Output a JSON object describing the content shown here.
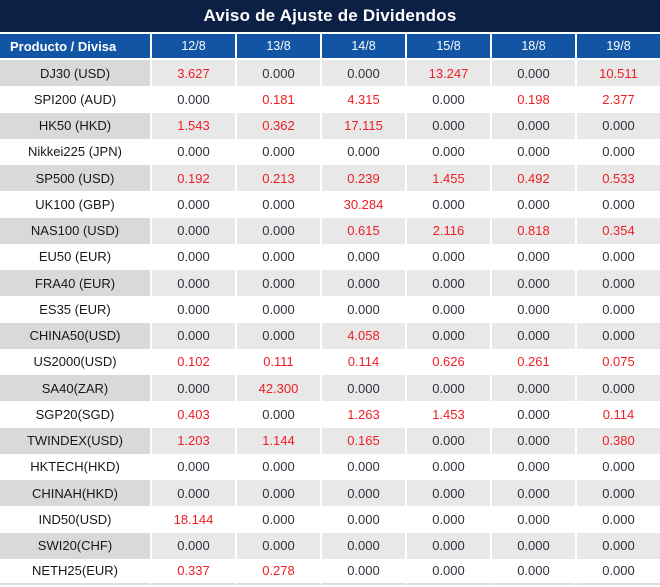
{
  "title": "Aviso de Ajuste de Dividendos",
  "colors": {
    "title_bg": "#0b2044",
    "header_bg": "#1155a4",
    "red": "#ee1e25",
    "zero_text": "#30303c",
    "product_text": "#17171f",
    "stripe_value": "#e9e8e8",
    "stripe_product": "#d9d9d9",
    "bottom_line": "#dcdcdc"
  },
  "table": {
    "columns": [
      "Producto / Divisa",
      "12/8",
      "13/8",
      "14/8",
      "15/8",
      "18/8",
      "19/8"
    ],
    "rows": [
      {
        "product": "DJ30 (USD)",
        "values": [
          "3.627",
          "0.000",
          "0.000",
          "13.247",
          "0.000",
          "10.511"
        ]
      },
      {
        "product": "SPI200 (AUD)",
        "values": [
          "0.000",
          "0.181",
          "4.315",
          "0.000",
          "0.198",
          "2.377"
        ]
      },
      {
        "product": "HK50 (HKD)",
        "values": [
          "1.543",
          "0.362",
          "17.115",
          "0.000",
          "0.000",
          "0.000"
        ]
      },
      {
        "product": "Nikkei225 (JPN)",
        "values": [
          "0.000",
          "0.000",
          "0.000",
          "0.000",
          "0.000",
          "0.000"
        ]
      },
      {
        "product": "SP500 (USD)",
        "values": [
          "0.192",
          "0.213",
          "0.239",
          "1.455",
          "0.492",
          "0.533"
        ]
      },
      {
        "product": "UK100 (GBP)",
        "values": [
          "0.000",
          "0.000",
          "30.284",
          "0.000",
          "0.000",
          "0.000"
        ]
      },
      {
        "product": "NAS100 (USD)",
        "values": [
          "0.000",
          "0.000",
          "0.615",
          "2.116",
          "0.818",
          "0.354"
        ]
      },
      {
        "product": "EU50 (EUR)",
        "values": [
          "0.000",
          "0.000",
          "0.000",
          "0.000",
          "0.000",
          "0.000"
        ]
      },
      {
        "product": "FRA40 (EUR)",
        "values": [
          "0.000",
          "0.000",
          "0.000",
          "0.000",
          "0.000",
          "0.000"
        ]
      },
      {
        "product": "ES35 (EUR)",
        "values": [
          "0.000",
          "0.000",
          "0.000",
          "0.000",
          "0.000",
          "0.000"
        ]
      },
      {
        "product": "CHINA50(USD)",
        "values": [
          "0.000",
          "0.000",
          "4.058",
          "0.000",
          "0.000",
          "0.000"
        ]
      },
      {
        "product": "US2000(USD)",
        "values": [
          "0.102",
          "0.111",
          "0.114",
          "0.626",
          "0.261",
          "0.075"
        ]
      },
      {
        "product": "SA40(ZAR)",
        "values": [
          "0.000",
          "42.300",
          "0.000",
          "0.000",
          "0.000",
          "0.000"
        ]
      },
      {
        "product": "SGP20(SGD)",
        "values": [
          "0.403",
          "0.000",
          "1.263",
          "1.453",
          "0.000",
          "0.114"
        ]
      },
      {
        "product": "TWINDEX(USD)",
        "values": [
          "1.203",
          "1.144",
          "0.165",
          "0.000",
          "0.000",
          "0.380"
        ]
      },
      {
        "product": "HKTECH(HKD)",
        "values": [
          "0.000",
          "0.000",
          "0.000",
          "0.000",
          "0.000",
          "0.000"
        ]
      },
      {
        "product": "CHINAH(HKD)",
        "values": [
          "0.000",
          "0.000",
          "0.000",
          "0.000",
          "0.000",
          "0.000"
        ]
      },
      {
        "product": "IND50(USD)",
        "values": [
          "18.144",
          "0.000",
          "0.000",
          "0.000",
          "0.000",
          "0.000"
        ]
      },
      {
        "product": "SWI20(CHF)",
        "values": [
          "0.000",
          "0.000",
          "0.000",
          "0.000",
          "0.000",
          "0.000"
        ]
      },
      {
        "product": "NETH25(EUR)",
        "values": [
          "0.337",
          "0.278",
          "0.000",
          "0.000",
          "0.000",
          "0.000"
        ]
      }
    ]
  }
}
